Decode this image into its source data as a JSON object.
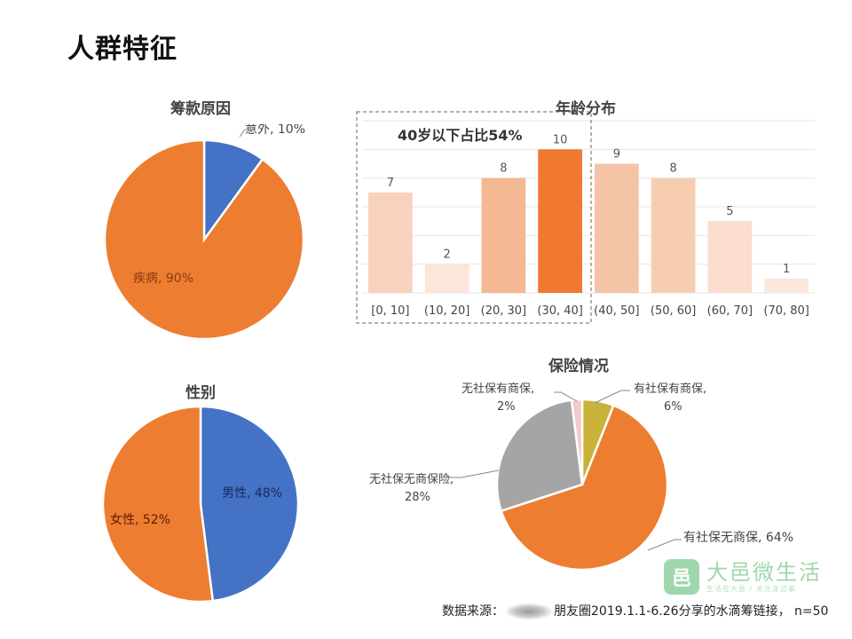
{
  "page": {
    "title": "人群特征"
  },
  "colors": {
    "orange": "#ED7D31",
    "blue": "#4472C4",
    "gray": "#A5A5A5",
    "yellow": "#C9B23A",
    "highlight": "#F07830"
  },
  "chart_data": [
    {
      "type": "pie",
      "title": "筹款原因",
      "labels": [
        "意外",
        "疾病"
      ],
      "values": [
        10,
        90
      ],
      "data_labels": [
        "意外, 10%",
        "疾病, 90%"
      ]
    },
    {
      "type": "bar",
      "title": "年龄分布",
      "categories": [
        "[0, 10]",
        "(10, 20]",
        "(20, 30]",
        "(30, 40]",
        "(40, 50]",
        "(50, 60]",
        "(60, 70]",
        "(70, 80]"
      ],
      "values": [
        7,
        2,
        8,
        10,
        9,
        8,
        5,
        1
      ],
      "annotation": "40岁以下占比54%",
      "ylim": [
        0,
        12
      ]
    },
    {
      "type": "pie",
      "title": "性别",
      "labels": [
        "男性",
        "女性"
      ],
      "values": [
        48,
        52
      ],
      "data_labels": [
        "男性, 48%",
        "女性, 52%"
      ]
    },
    {
      "type": "pie",
      "title": "保险情况",
      "labels": [
        "有社保有商保",
        "有社保无商保",
        "无社保无商保险",
        "无社保有商保"
      ],
      "values": [
        6,
        64,
        28,
        2
      ],
      "data_labels": [
        "有社保有商保, 6%",
        "有社保无商保, 64%",
        "无社保无商保险, 28%",
        "无社保有商保, 2%"
      ]
    }
  ],
  "source": {
    "prefix": "数据来源：",
    "text": "朋友圈2019.1.1-6.26分享的水滴筹链接，  n=50"
  },
  "watermark": {
    "icon": "邑",
    "name": "大邑微生活",
    "slogan": "生活在大邑  /  关注身边事"
  }
}
